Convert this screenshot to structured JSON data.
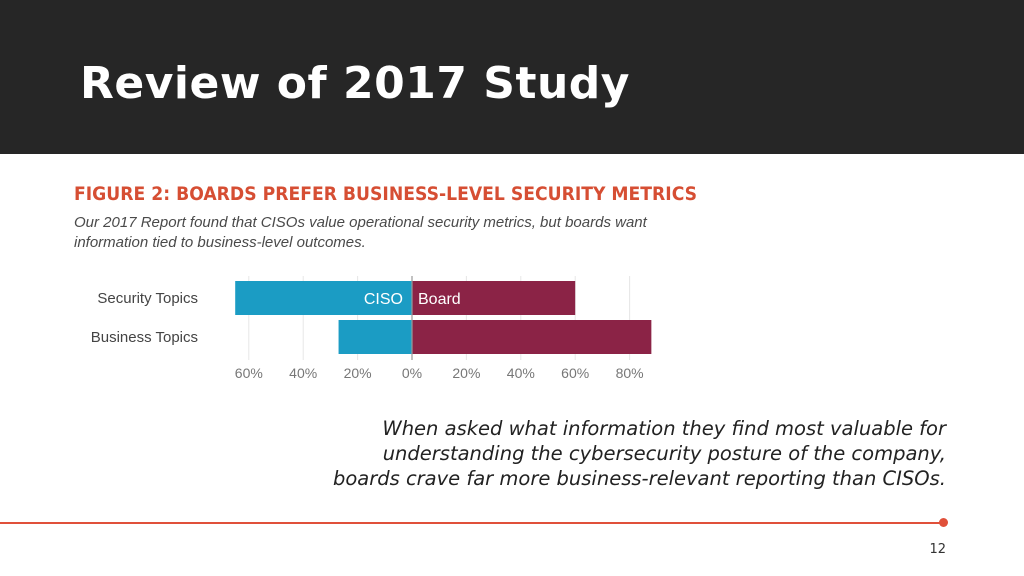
{
  "slide": {
    "title": "Review of 2017 Study",
    "caption_lines": [
      "When asked what information they find most valuable for",
      "understanding the cybersecurity posture of the company,",
      "boards crave far more business-relevant reporting than CISOs."
    ],
    "page_number": "12",
    "colors": {
      "header_bg": "#262626",
      "accent": "#e0503a"
    }
  },
  "chart_data": {
    "type": "bar",
    "orientation": "horizontal-diverging",
    "title": "FIGURE 2: BOARDS PREFER BUSINESS-LEVEL SECURITY METRICS",
    "subtitle": "Our 2017 Report found that CISOs value operational security metrics, but boards want information tied to business-level outcomes.",
    "categories": [
      "Security Topics",
      "Business Topics"
    ],
    "series": [
      {
        "name": "CISO",
        "color": "#1b9cc4",
        "values": [
          65,
          27
        ],
        "direction": "left"
      },
      {
        "name": "Board",
        "color": "#8b2346",
        "values": [
          60,
          88
        ],
        "direction": "right"
      }
    ],
    "xlim": [
      -70,
      90
    ],
    "ticks": [
      -60,
      -40,
      -20,
      0,
      20,
      40,
      60,
      80
    ],
    "tick_labels": [
      "60%",
      "40%",
      "20%",
      "0%",
      "20%",
      "40%",
      "60%",
      "80%"
    ],
    "grid": true
  }
}
